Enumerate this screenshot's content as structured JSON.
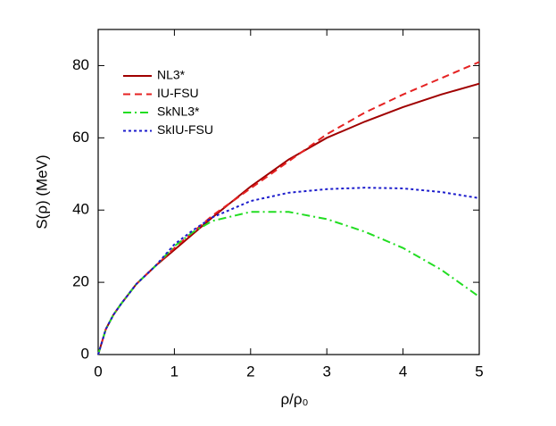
{
  "chart_data": {
    "type": "line",
    "xlabel": "ρ/ρ₀",
    "ylabel": "S(ρ) (MeV)",
    "x": [
      0,
      0.1,
      0.2,
      0.3,
      0.5,
      0.75,
      1,
      1.25,
      1.5,
      2,
      2.5,
      3,
      3.5,
      4,
      4.5,
      5
    ],
    "series": [
      {
        "name": "NL3*",
        "color": "#a00000",
        "dash": "solid",
        "values": [
          0,
          7,
          11,
          14,
          19.5,
          24.5,
          29,
          33.5,
          38,
          46.5,
          54,
          60,
          64.5,
          68.5,
          72,
          75
        ]
      },
      {
        "name": "IU-FSU",
        "color": "#e52222",
        "dash": "dashed",
        "values": [
          0,
          7,
          11,
          14,
          19.5,
          24.5,
          29.5,
          34,
          38.5,
          46,
          53.5,
          61,
          67,
          72,
          76.5,
          81
        ]
      },
      {
        "name": "SkNL3*",
        "color": "#22dd22",
        "dash": "dashdot",
        "values": [
          0,
          7,
          11,
          14,
          19.5,
          24.5,
          30,
          34,
          37,
          39.5,
          39.5,
          37.5,
          34,
          29.5,
          23.5,
          16
        ]
      },
      {
        "name": "SkIU-FSU",
        "color": "#1c1ccc",
        "dash": "dotted",
        "values": [
          0,
          7,
          11,
          14,
          19.5,
          24.5,
          30.5,
          34.5,
          38,
          42.5,
          44.8,
          45.8,
          46.2,
          46,
          45,
          43.3
        ]
      }
    ],
    "xlim": [
      0,
      5
    ],
    "xticks": [
      0,
      1,
      2,
      3,
      4,
      5
    ],
    "ylim": [
      0,
      90
    ],
    "yticks": [
      0,
      20,
      40,
      60,
      80
    ],
    "legend": "upper-left",
    "grid": false
  }
}
